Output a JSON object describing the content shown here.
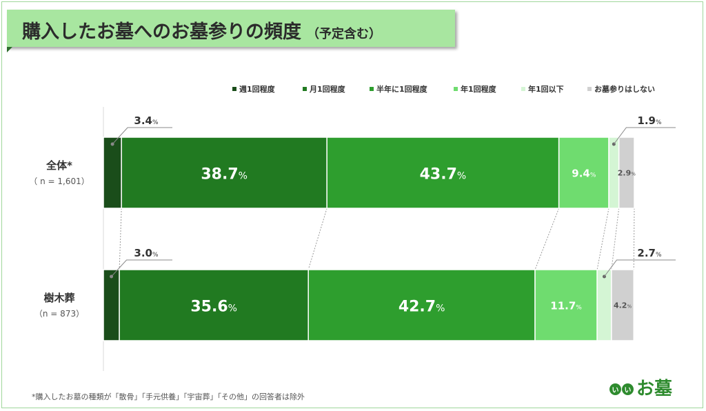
{
  "title": {
    "main": "購入したお墓へのお墓参りの頻度",
    "sub": "（予定含む）"
  },
  "footnote": "*購入したお墓の種類が「散骨」「手元供養」「宇宙葬」「その他」の回答者は除外",
  "brand": {
    "badge": [
      "い",
      "い"
    ],
    "text": "お墓"
  },
  "colors": {
    "accent": "#2e8b2e",
    "title_bg": "#a8e6a0"
  },
  "chart_data": {
    "type": "bar",
    "orientation": "horizontal-stacked-100",
    "categories": [
      {
        "label": "全体*",
        "n": "（ n = 1,601）"
      },
      {
        "label": "樹木葬",
        "n": "（n = 873）"
      }
    ],
    "unit": "%",
    "series": [
      {
        "name": "週1回程度",
        "color": "#1a4d1a",
        "values": [
          3.4,
          3.0
        ]
      },
      {
        "name": "月1回程度",
        "color": "#217a21",
        "values": [
          38.7,
          35.6
        ]
      },
      {
        "name": "半年に1回程度",
        "color": "#2e9e2e",
        "values": [
          43.7,
          42.7
        ]
      },
      {
        "name": "年1回程度",
        "color": "#6fdc6f",
        "values": [
          9.4,
          11.7
        ]
      },
      {
        "name": "年1回以下",
        "color": "#d4f5d4",
        "values": [
          1.9,
          2.7
        ]
      },
      {
        "name": "お墓参りはしない",
        "color": "#d0d0d0",
        "values": [
          2.9,
          4.2
        ]
      }
    ],
    "legend_position": "top-right",
    "grid": false
  }
}
